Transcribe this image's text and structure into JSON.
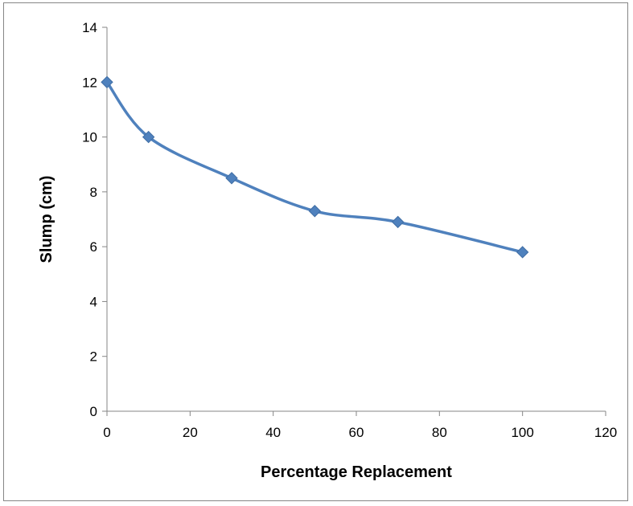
{
  "chart_data": {
    "type": "line",
    "title": "",
    "xlabel": "Percentage Replacement",
    "ylabel": "Slump (cm)",
    "xlim": [
      0,
      120
    ],
    "ylim": [
      0,
      14
    ],
    "xticks": [
      0,
      20,
      40,
      60,
      80,
      100,
      120
    ],
    "yticks": [
      0,
      2,
      4,
      6,
      8,
      10,
      12,
      14
    ],
    "grid": false,
    "legend": "none",
    "smooth": true,
    "marker": "diamond",
    "series": [
      {
        "color": "#4f81bd",
        "x": [
          0,
          10,
          30,
          50,
          70,
          100
        ],
        "y": [
          12,
          10,
          8.5,
          7.3,
          6.9,
          5.8
        ]
      }
    ]
  }
}
